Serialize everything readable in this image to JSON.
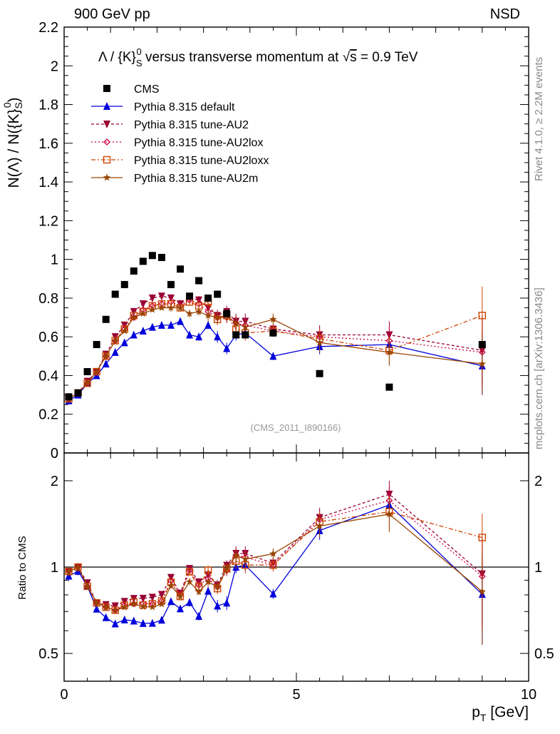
{
  "header": {
    "left": "900 GeV pp",
    "right": "NSD",
    "side_top": "Rivet 4.1.0, ≥ 2.2M events",
    "side_bottom": "mcplots.cern.ch [arXiv:1306.3436]"
  },
  "chart_data": {
    "type": "scatter",
    "title_parts": {
      "lambda": "Λ",
      "slash": " / {K}",
      "sup": "0",
      "sub": "S",
      "rest": " versus transverse momentum at ",
      "sqrt": "√",
      "s": "s",
      "eq": " = 0.9 TeV"
    },
    "ylabel_parts": {
      "a": "N(Λ)  /  N({K}",
      "sup": "0",
      "sub": "S",
      "b": ")"
    },
    "xlabel": "p",
    "xlabel_sub": "T",
    "xlabel_unit": " [GeV]",
    "ratio_ylabel": "Ratio to CMS",
    "watermark": "(CMS_2011_I890166)",
    "xlim": [
      0,
      10
    ],
    "ylim": [
      0,
      2.2
    ],
    "ratio_ylim": [
      0.4,
      2.5
    ],
    "x_ticks": [
      "0",
      "5",
      "10"
    ],
    "y_ticks": [
      "0",
      "0.2",
      "0.4",
      "0.6",
      "0.8",
      "1",
      "1.2",
      "1.4",
      "1.6",
      "1.8",
      "2",
      "2.2"
    ],
    "ratio_ticks": [
      "0.5",
      "1",
      "2"
    ],
    "ratio_ticks_right": [
      "0.5",
      "1",
      "2"
    ],
    "x": [
      0.1,
      0.3,
      0.5,
      0.7,
      0.9,
      1.1,
      1.3,
      1.5,
      1.7,
      1.9,
      2.1,
      2.3,
      2.5,
      2.7,
      2.9,
      3.1,
      3.3,
      3.5,
      3.7,
      3.9,
      4.5,
      5.5,
      7.0,
      9.0
    ],
    "data": {
      "name": "CMS",
      "values": [
        0.29,
        0.31,
        0.42,
        0.56,
        0.69,
        0.82,
        0.87,
        0.94,
        0.99,
        1.02,
        1.01,
        0.87,
        0.95,
        0.81,
        0.89,
        0.8,
        0.82,
        0.72,
        0.61,
        0.61,
        0.62,
        0.41,
        0.34,
        0.56
      ]
    },
    "series": [
      {
        "name": "Pythia 8.315 default",
        "color": "#0000dd",
        "dash": "",
        "marker": "triangle-up",
        "values": [
          0.27,
          0.3,
          0.36,
          0.4,
          0.46,
          0.52,
          0.57,
          0.61,
          0.63,
          0.65,
          0.66,
          0.66,
          0.68,
          0.61,
          0.6,
          0.66,
          0.6,
          0.54,
          0.61,
          0.62,
          0.5,
          0.55,
          0.56,
          0.45
        ],
        "errors": [
          0.01,
          0.01,
          0.01,
          0.01,
          0.01,
          0.01,
          0.01,
          0.01,
          0.01,
          0.01,
          0.01,
          0.01,
          0.01,
          0.02,
          0.02,
          0.02,
          0.03,
          0.03,
          0.03,
          0.03,
          0.02,
          0.04,
          0.06,
          0.15
        ]
      },
      {
        "name": "Pythia 8.315 tune-AU2",
        "color": "#990033",
        "dash": "4,3",
        "marker": "triangle-down",
        "values": [
          0.28,
          0.31,
          0.37,
          0.42,
          0.51,
          0.6,
          0.66,
          0.73,
          0.77,
          0.8,
          0.81,
          0.8,
          0.77,
          0.8,
          0.79,
          0.75,
          0.71,
          0.73,
          0.68,
          0.68,
          0.64,
          0.61,
          0.61,
          0.53
        ],
        "errors": [
          0.01,
          0.01,
          0.01,
          0.01,
          0.01,
          0.01,
          0.01,
          0.01,
          0.01,
          0.01,
          0.01,
          0.02,
          0.02,
          0.02,
          0.02,
          0.03,
          0.03,
          0.03,
          0.04,
          0.04,
          0.03,
          0.05,
          0.07,
          0.18
        ]
      },
      {
        "name": "Pythia 8.315 tune-AU2lox",
        "color": "#cc0044",
        "dash": "2,3",
        "marker": "diamond",
        "values": [
          0.28,
          0.31,
          0.36,
          0.42,
          0.5,
          0.58,
          0.64,
          0.7,
          0.74,
          0.76,
          0.77,
          0.78,
          0.76,
          0.79,
          0.77,
          0.73,
          0.7,
          0.7,
          0.67,
          0.66,
          0.63,
          0.6,
          0.58,
          0.52
        ],
        "errors": [
          0.01,
          0.01,
          0.01,
          0.01,
          0.01,
          0.01,
          0.01,
          0.01,
          0.01,
          0.01,
          0.01,
          0.02,
          0.02,
          0.02,
          0.02,
          0.03,
          0.03,
          0.03,
          0.04,
          0.04,
          0.03,
          0.05,
          0.07,
          0.18
        ]
      },
      {
        "name": "Pythia 8.315 tune-AU2loxx",
        "color": "#cc4400",
        "dash": "6,3,2,3",
        "marker": "square-open",
        "values": [
          0.28,
          0.31,
          0.36,
          0.42,
          0.5,
          0.58,
          0.64,
          0.71,
          0.73,
          0.76,
          0.77,
          0.77,
          0.75,
          0.78,
          0.76,
          0.78,
          0.69,
          0.71,
          0.64,
          0.62,
          0.63,
          0.59,
          0.53,
          0.71
        ],
        "errors": [
          0.01,
          0.01,
          0.01,
          0.01,
          0.01,
          0.01,
          0.01,
          0.01,
          0.01,
          0.01,
          0.01,
          0.02,
          0.02,
          0.02,
          0.02,
          0.03,
          0.03,
          0.03,
          0.04,
          0.04,
          0.03,
          0.05,
          0.07,
          0.15
        ]
      },
      {
        "name": "Pythia 8.315 tune-AU2m",
        "color": "#994400",
        "dash": "",
        "marker": "star",
        "values": [
          0.28,
          0.31,
          0.36,
          0.42,
          0.5,
          0.58,
          0.63,
          0.7,
          0.72,
          0.74,
          0.75,
          0.75,
          0.75,
          0.72,
          0.73,
          0.71,
          0.7,
          0.71,
          0.67,
          0.65,
          0.69,
          0.57,
          0.52,
          0.46
        ],
        "errors": [
          0.01,
          0.01,
          0.01,
          0.01,
          0.01,
          0.01,
          0.01,
          0.01,
          0.01,
          0.01,
          0.01,
          0.02,
          0.02,
          0.02,
          0.02,
          0.03,
          0.03,
          0.03,
          0.04,
          0.04,
          0.03,
          0.05,
          0.07,
          0.16
        ]
      }
    ]
  }
}
